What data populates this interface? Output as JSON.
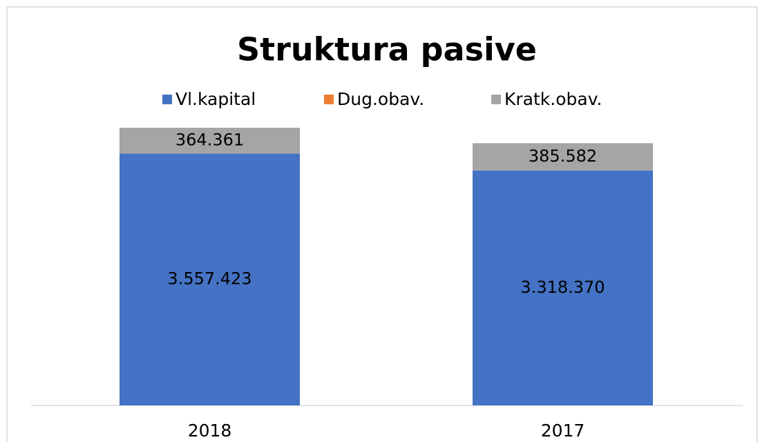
{
  "chart_data": {
    "type": "stacked_bar",
    "title": "Struktura pasive",
    "categories": [
      "2018",
      "2017"
    ],
    "series": [
      {
        "name": "Vl.kapital",
        "color": "#4472c4",
        "values": [
          3557423,
          3318370
        ],
        "value_labels": [
          "3.557.423",
          "3.318.370"
        ]
      },
      {
        "name": "Dug.obav.",
        "color": "#ed7d31",
        "values": [
          0,
          0
        ],
        "value_labels": [
          "-",
          "-"
        ]
      },
      {
        "name": "Kratk.obav.",
        "color": "#a5a5a5",
        "values": [
          364361,
          385582
        ],
        "value_labels": [
          "364.361",
          "385.582"
        ]
      }
    ],
    "legend": "top"
  }
}
